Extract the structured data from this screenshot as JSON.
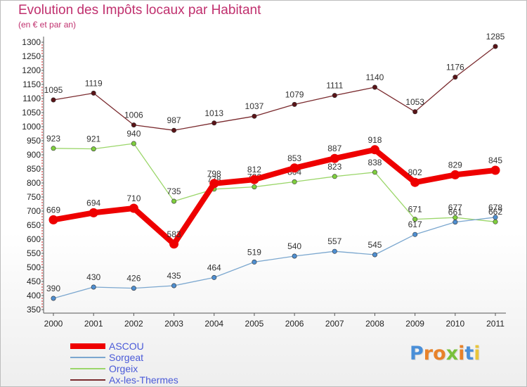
{
  "title": "Evolution des Impôts locaux par Habitant",
  "subtitle": "(en € et par an)",
  "logo": {
    "letters": [
      "P",
      "r",
      "o",
      "x",
      "i",
      "t",
      "i"
    ],
    "colors": [
      "#4a8fd8",
      "#e8822a",
      "#e8822a",
      "#79c13c",
      "#e8822a",
      "#4a8fd8",
      "#e8c53a"
    ]
  },
  "chart_data": {
    "type": "line",
    "title": "Evolution des Impôts locaux par Habitant",
    "subtitle": "(en € et par an)",
    "xlabel": "",
    "ylabel": "",
    "ylim": [
      350,
      1300
    ],
    "grid": false,
    "legend_position": "bottom-left",
    "categories": [
      "2000",
      "2001",
      "2002",
      "2003",
      "2004",
      "2005",
      "2006",
      "2007",
      "2008",
      "2009",
      "2010",
      "2011"
    ],
    "y_ticks": [
      "350",
      "400",
      "450",
      "500",
      "550",
      "600",
      "650",
      "700",
      "750",
      "800",
      "850",
      "900",
      "950",
      "1000",
      "1050",
      "1100",
      "1150",
      "1200",
      "1250",
      "1300"
    ],
    "series": [
      {
        "name": "Ax-les-Thermes",
        "color": "#7a2a2e",
        "marker": "#5a1418",
        "values": [
          1095,
          1119,
          1006,
          987,
          1013,
          1037,
          1079,
          1111,
          1140,
          1053,
          1176,
          1285
        ],
        "labels": [
          "1095",
          "1119",
          "1006",
          "987",
          "1013",
          "1037",
          "1079",
          "1111",
          "1140",
          "1053",
          "1176",
          "1285"
        ]
      },
      {
        "name": "Orgeix",
        "color": "#9bd66a",
        "marker": "#7fcf3e",
        "values": [
          923,
          921,
          940,
          735,
          778,
          786,
          804,
          823,
          838,
          671,
          677,
          662
        ],
        "labels": [
          "923",
          "921",
          "940",
          "735",
          "778",
          "786",
          "804",
          "823",
          "838",
          "671",
          "677",
          "662"
        ]
      },
      {
        "name": "Sorgeat",
        "color": "#7ba7cf",
        "marker": "#4f8fd1",
        "values": [
          390,
          430,
          426,
          435,
          464,
          519,
          540,
          557,
          545,
          617,
          661,
          678
        ],
        "labels": [
          "390",
          "430",
          "426",
          "435",
          "464",
          "519",
          "540",
          "557",
          "545",
          "617",
          "661",
          "678"
        ]
      },
      {
        "name": "ASCOU",
        "color": "#ee0000",
        "marker": "#ee0000",
        "values": [
          669,
          694,
          710,
          583,
          798,
          812,
          853,
          887,
          918,
          802,
          829,
          845
        ],
        "labels": [
          "669",
          "694",
          "710",
          "583",
          "798",
          "812",
          "853",
          "887",
          "918",
          "802",
          "829",
          "845"
        ]
      }
    ],
    "legend": [
      {
        "name": "ASCOU",
        "color": "#ee0000",
        "text_color": "#4a5ad8"
      },
      {
        "name": "Sorgeat",
        "color": "#7ba7cf",
        "text_color": "#4a5ad8"
      },
      {
        "name": "Orgeix",
        "color": "#9bd66a",
        "text_color": "#4a5ad8"
      },
      {
        "name": "Ax-les-Thermes",
        "color": "#7a2a2e",
        "text_color": "#4a5ad8"
      }
    ]
  }
}
